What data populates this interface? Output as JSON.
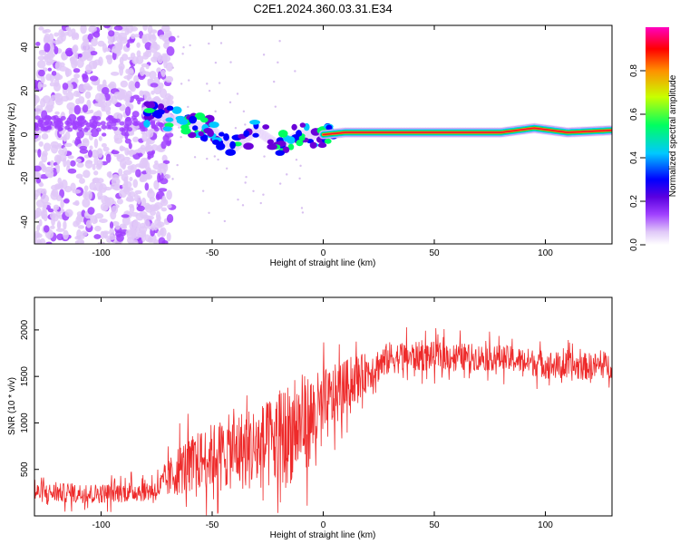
{
  "title": "C2E1.2024.360.03.31.E34",
  "chart_data": [
    {
      "type": "heatmap",
      "xlabel": "Height of straight line (km)",
      "ylabel": "Frequency (Hz)",
      "xlim": [
        -130,
        130
      ],
      "ylim": [
        -50,
        50
      ],
      "xticks": [
        -100,
        -50,
        0,
        50,
        100
      ],
      "yticks": [
        -40,
        -20,
        0,
        20,
        40
      ],
      "colorbar": {
        "label": "Normalized spectral amplitude",
        "range": [
          0,
          1
        ],
        "ticks": [
          0.0,
          0.2,
          0.4,
          0.6,
          0.8
        ],
        "colormap": [
          "#ffffff",
          "#e0c8f8",
          "#a040ff",
          "#6a00d8",
          "#0000ff",
          "#00c8ff",
          "#00ff60",
          "#c8ff00",
          "#ff9000",
          "#ff0000",
          "#ff00c0"
        ]
      },
      "features": [
        {
          "description_x": [
            -130,
            -72
          ],
          "y_range": [
            -50,
            50
          ],
          "amplitude": 0.15
        },
        {
          "ridge_x": [
            -80,
            -60,
            -50,
            -40,
            -30,
            -20,
            -10,
            0,
            10,
            30,
            50,
            80,
            95,
            110,
            130
          ],
          "ridge_y": [
            10,
            5,
            2,
            -6,
            2,
            -5,
            0,
            0,
            1,
            1,
            1,
            1,
            3,
            1,
            2
          ],
          "amplitude": [
            0.35,
            0.5,
            0.55,
            0.5,
            0.55,
            0.5,
            0.7,
            0.85,
            0.9,
            0.95,
            0.95,
            0.9,
            0.8,
            0.9,
            0.85
          ]
        }
      ]
    },
    {
      "type": "line",
      "xlabel": "Height of straight line (km)",
      "ylabel": "SNR (10 * v/v)",
      "xlim": [
        -130,
        130
      ],
      "ylim": [
        0,
        2350
      ],
      "xticks": [
        -100,
        -50,
        0,
        50,
        100
      ],
      "yticks": [
        500,
        1000,
        1500,
        2000
      ],
      "color": "#ee2a2a",
      "series": [
        {
          "x": [
            -130,
            -100,
            -75,
            -65,
            -50,
            -40,
            -25,
            -15,
            -5,
            0,
            10,
            20,
            30,
            50,
            80,
            110,
            130
          ],
          "mean": [
            250,
            240,
            280,
            500,
            650,
            700,
            750,
            900,
            1050,
            1150,
            1400,
            1550,
            1700,
            1720,
            1700,
            1600,
            1620
          ],
          "spread": [
            150,
            150,
            170,
            400,
            500,
            600,
            700,
            800,
            700,
            600,
            400,
            300,
            250,
            220,
            200,
            220,
            200
          ]
        }
      ]
    }
  ]
}
